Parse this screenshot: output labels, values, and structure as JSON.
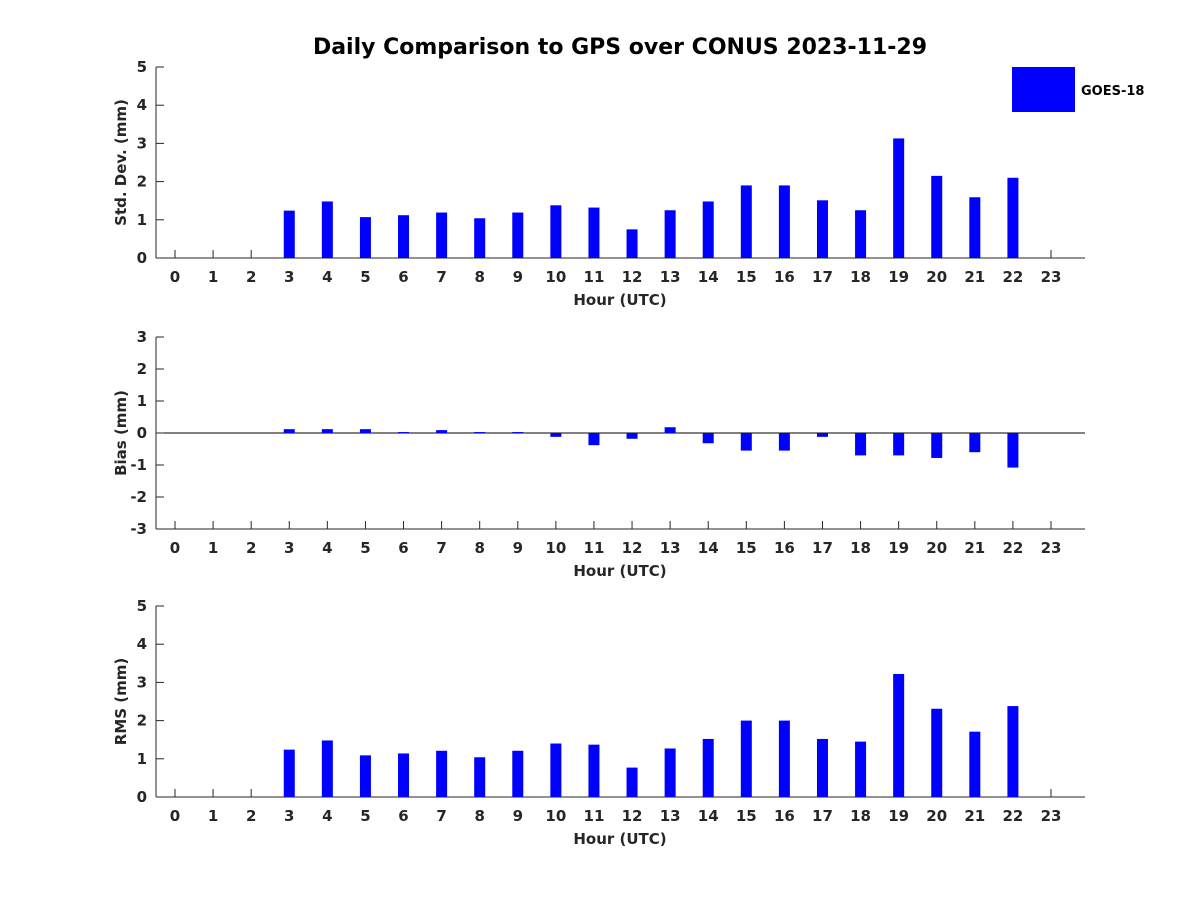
{
  "title": "Daily Comparison to GPS over CONUS 2023-11-29",
  "legend": {
    "label": "GOES-18",
    "color": "#0000ff",
    "placement": "top-right"
  },
  "colors": {
    "bar": "#0000ff",
    "axis": "#262626",
    "background": "#ffffff"
  },
  "chart_data": [
    {
      "type": "bar",
      "name": "std-dev",
      "xlabel": "Hour (UTC)",
      "ylabel": "Std. Dev. (mm)",
      "categories": [
        0,
        1,
        2,
        3,
        4,
        5,
        6,
        7,
        8,
        9,
        10,
        11,
        12,
        13,
        14,
        15,
        16,
        17,
        18,
        19,
        20,
        21,
        22,
        23
      ],
      "ylim": [
        0,
        5
      ],
      "yticks": [
        0,
        1,
        2,
        3,
        4,
        5
      ],
      "series": [
        {
          "name": "GOES-18",
          "values": [
            null,
            null,
            null,
            1.24,
            1.48,
            1.07,
            1.12,
            1.19,
            1.04,
            1.19,
            1.38,
            1.32,
            0.75,
            1.25,
            1.48,
            1.9,
            1.9,
            1.51,
            1.25,
            3.13,
            2.15,
            1.59,
            2.1,
            null
          ]
        }
      ]
    },
    {
      "type": "bar",
      "name": "bias",
      "xlabel": "Hour (UTC)",
      "ylabel": "Bias (mm)",
      "categories": [
        0,
        1,
        2,
        3,
        4,
        5,
        6,
        7,
        8,
        9,
        10,
        11,
        12,
        13,
        14,
        15,
        16,
        17,
        18,
        19,
        20,
        21,
        22,
        23
      ],
      "ylim": [
        -3,
        3
      ],
      "yticks": [
        -3,
        -2,
        -1,
        0,
        1,
        2,
        3
      ],
      "zero_line": true,
      "series": [
        {
          "name": "GOES-18",
          "values": [
            null,
            null,
            null,
            0.12,
            0.12,
            0.12,
            0.03,
            0.09,
            0.03,
            0.03,
            -0.12,
            -0.38,
            -0.18,
            0.18,
            -0.32,
            -0.55,
            -0.55,
            -0.12,
            -0.7,
            -0.7,
            -0.78,
            -0.6,
            -1.08,
            null
          ]
        }
      ]
    },
    {
      "type": "bar",
      "name": "rms",
      "xlabel": "Hour (UTC)",
      "ylabel": "RMS (mm)",
      "categories": [
        0,
        1,
        2,
        3,
        4,
        5,
        6,
        7,
        8,
        9,
        10,
        11,
        12,
        13,
        14,
        15,
        16,
        17,
        18,
        19,
        20,
        21,
        22,
        23
      ],
      "ylim": [
        0,
        5
      ],
      "yticks": [
        0,
        1,
        2,
        3,
        4,
        5
      ],
      "series": [
        {
          "name": "GOES-18",
          "values": [
            null,
            null,
            null,
            1.24,
            1.48,
            1.09,
            1.14,
            1.21,
            1.04,
            1.21,
            1.4,
            1.37,
            0.77,
            1.27,
            1.52,
            2.0,
            2.0,
            1.52,
            1.45,
            3.22,
            2.31,
            1.71,
            2.38,
            null
          ]
        }
      ]
    }
  ]
}
